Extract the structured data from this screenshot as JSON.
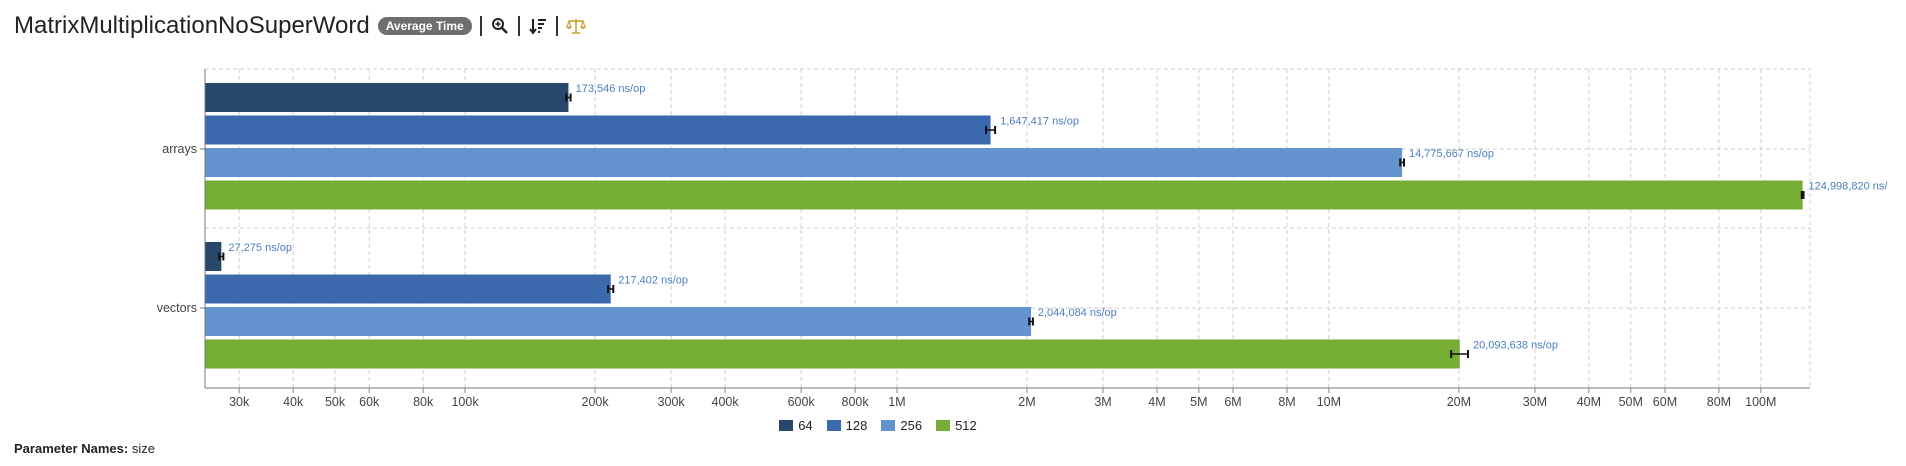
{
  "header": {
    "title": "MatrixMultiplicationNoSuperWord",
    "badge": "Average Time"
  },
  "params": {
    "label": "Parameter Names:",
    "value": "size"
  },
  "colors": {
    "64": "#27476b",
    "128": "#3a6aad",
    "256": "#6394cf",
    "512": "#76ad35",
    "error": "#111111",
    "label": "#4a7fc0",
    "grid": "#cfcfcf"
  },
  "chart_data": {
    "type": "bar",
    "orientation": "horizontal",
    "x_scale": "log",
    "xlim": [
      25000,
      130000000
    ],
    "categories": [
      "arrays",
      "vectors"
    ],
    "series": [
      {
        "name": "64",
        "values": [
          173546,
          27275
        ],
        "labels": [
          "173,546 ns/op",
          "27,275 ns/op"
        ],
        "errors": [
          2000,
          300
        ]
      },
      {
        "name": "128",
        "values": [
          1647417,
          217402
        ],
        "labels": [
          "1,647,417 ns/op",
          "217,402 ns/op"
        ],
        "errors": [
          40000,
          3000
        ]
      },
      {
        "name": "256",
        "values": [
          14775667,
          2044084
        ],
        "labels": [
          "14,775,667 ns/op",
          "2,044,084 ns/op"
        ],
        "errors": [
          150000,
          20000
        ]
      },
      {
        "name": "512",
        "values": [
          124998820,
          20093638
        ],
        "labels": [
          "124,998,820 ns/",
          "20,093,638 ns/op"
        ],
        "errors": [
          600000,
          900000
        ]
      }
    ],
    "x_ticks": [
      {
        "v": 30000,
        "t": "30k"
      },
      {
        "v": 40000,
        "t": "40k"
      },
      {
        "v": 50000,
        "t": "50k"
      },
      {
        "v": 60000,
        "t": "60k"
      },
      {
        "v": 80000,
        "t": "80k"
      },
      {
        "v": 100000,
        "t": "100k"
      },
      {
        "v": 200000,
        "t": "200k"
      },
      {
        "v": 300000,
        "t": "300k"
      },
      {
        "v": 400000,
        "t": "400k"
      },
      {
        "v": 600000,
        "t": "600k"
      },
      {
        "v": 800000,
        "t": "800k"
      },
      {
        "v": 1000000,
        "t": "1M"
      },
      {
        "v": 2000000,
        "t": "2M"
      },
      {
        "v": 3000000,
        "t": "3M"
      },
      {
        "v": 4000000,
        "t": "4M"
      },
      {
        "v": 5000000,
        "t": "5M"
      },
      {
        "v": 6000000,
        "t": "6M"
      },
      {
        "v": 8000000,
        "t": "8M"
      },
      {
        "v": 10000000,
        "t": "10M"
      },
      {
        "v": 20000000,
        "t": "20M"
      },
      {
        "v": 30000000,
        "t": "30M"
      },
      {
        "v": 40000000,
        "t": "40M"
      },
      {
        "v": 50000000,
        "t": "50M"
      },
      {
        "v": 60000000,
        "t": "60M"
      },
      {
        "v": 80000000,
        "t": "80M"
      },
      {
        "v": 100000000,
        "t": "100M"
      }
    ],
    "grid": true,
    "legend_position": "bottom"
  },
  "legend": [
    {
      "label": "64"
    },
    {
      "label": "128"
    },
    {
      "label": "256"
    },
    {
      "label": "512"
    }
  ]
}
